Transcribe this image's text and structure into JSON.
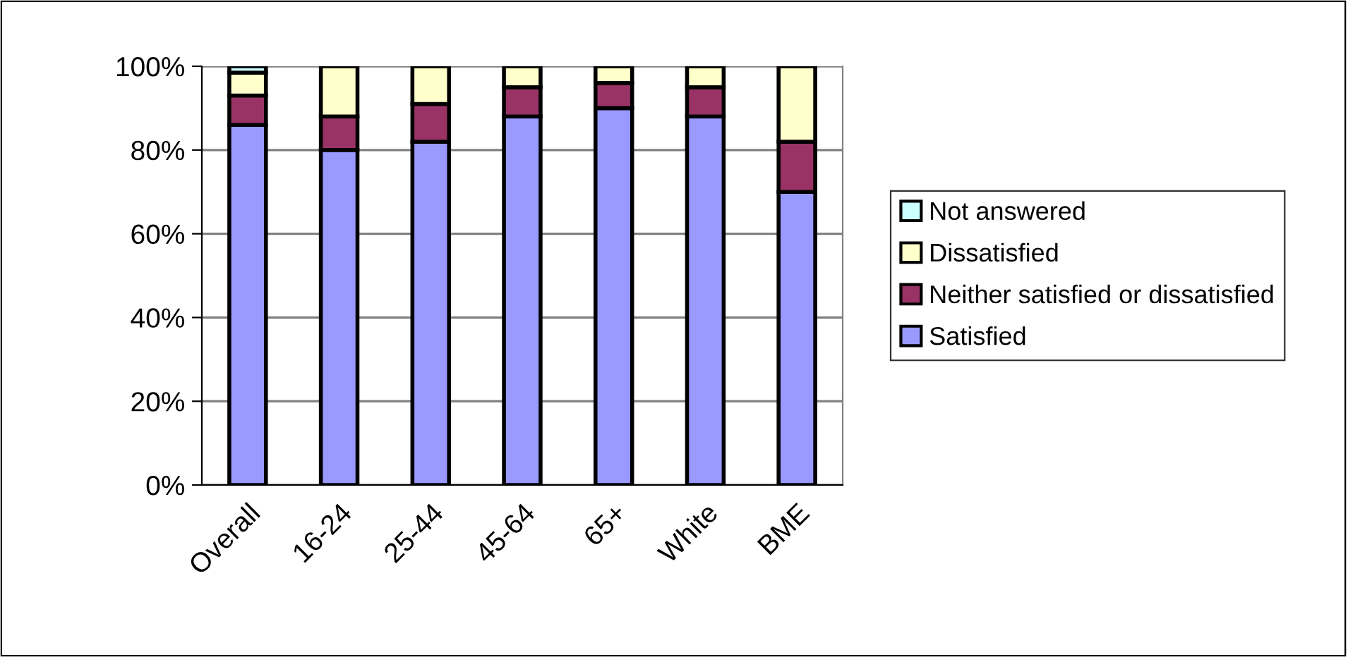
{
  "chart_data": {
    "type": "bar",
    "stacked": true,
    "categories": [
      "Overall",
      "16-24",
      "25-44",
      "45-64",
      "65+",
      "White",
      "BME"
    ],
    "series": [
      {
        "name": "Satisfied",
        "color": "#9999ff",
        "values": [
          86,
          80,
          82,
          88,
          90,
          88,
          70
        ]
      },
      {
        "name": "Neither satisfied or dissatisfied",
        "color": "#993366",
        "values": [
          7,
          8,
          9,
          7,
          6,
          7,
          12
        ]
      },
      {
        "name": "Dissatisfied",
        "color": "#ffffcc",
        "values": [
          5.5,
          12,
          9,
          5,
          4,
          5,
          18
        ]
      },
      {
        "name": "Not answered",
        "color": "#ccffff",
        "values": [
          1.5,
          null,
          null,
          null,
          null,
          null,
          null
        ]
      }
    ],
    "ylim": [
      0,
      100
    ],
    "yticks": [
      {
        "value": 0,
        "label": "0%"
      },
      {
        "value": 20,
        "label": "20%"
      },
      {
        "value": 40,
        "label": "40%"
      },
      {
        "value": 60,
        "label": "60%"
      },
      {
        "value": 80,
        "label": "80%"
      },
      {
        "value": 100,
        "label": "100%"
      }
    ],
    "grid": "y",
    "legend": "right"
  }
}
